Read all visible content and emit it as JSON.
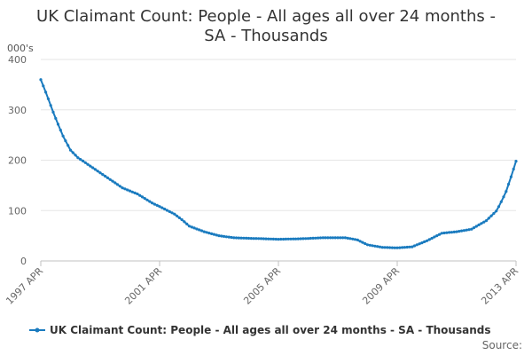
{
  "chart_data": {
    "type": "line",
    "title_lines": [
      "UK Claimant Count: People - All ages all over 24 months -",
      "SA - Thousands"
    ],
    "y_unit_label": "000's",
    "ylim": [
      0,
      400
    ],
    "y_ticks": [
      0,
      100,
      200,
      300,
      400
    ],
    "x_range": [
      1997.25,
      2013.25
    ],
    "x_ticks": [
      {
        "value": 1997.25,
        "label": "1997 APR"
      },
      {
        "value": 2001.25,
        "label": "2001 APR"
      },
      {
        "value": 2005.25,
        "label": "2005 APR"
      },
      {
        "value": 2009.25,
        "label": "2009 APR"
      },
      {
        "value": 2013.25,
        "label": "2013 APR"
      }
    ],
    "grid": true,
    "legend_position": "bottom",
    "series": [
      {
        "name": "UK Claimant Count: People - All ages all over 24 months - SA - Thousands",
        "color": "#1a7bbf",
        "anchors": [
          [
            1997.25,
            360
          ],
          [
            1997.45,
            330
          ],
          [
            1997.7,
            290
          ],
          [
            1998.0,
            248
          ],
          [
            1998.25,
            220
          ],
          [
            1998.5,
            205
          ],
          [
            1999.0,
            185
          ],
          [
            1999.5,
            165
          ],
          [
            2000.0,
            145
          ],
          [
            2000.5,
            133
          ],
          [
            2001.0,
            115
          ],
          [
            2001.25,
            108
          ],
          [
            2001.75,
            93
          ],
          [
            2002.0,
            82
          ],
          [
            2002.25,
            69
          ],
          [
            2002.75,
            58
          ],
          [
            2003.25,
            50
          ],
          [
            2003.75,
            46
          ],
          [
            2004.25,
            45
          ],
          [
            2005.25,
            43
          ],
          [
            2006.0,
            44
          ],
          [
            2006.75,
            46
          ],
          [
            2007.5,
            46
          ],
          [
            2007.9,
            42
          ],
          [
            2008.25,
            32
          ],
          [
            2008.75,
            27
          ],
          [
            2009.25,
            26
          ],
          [
            2009.75,
            28
          ],
          [
            2010.25,
            40
          ],
          [
            2010.75,
            55
          ],
          [
            2011.25,
            58
          ],
          [
            2011.75,
            63
          ],
          [
            2012.25,
            80
          ],
          [
            2012.6,
            100
          ],
          [
            2012.9,
            135
          ],
          [
            2013.1,
            170
          ],
          [
            2013.25,
            198
          ]
        ]
      }
    ],
    "legend_text": "UK Claimant Count: People - All ages all over 24 months - SA - Thousands",
    "source_label": "Source:"
  }
}
